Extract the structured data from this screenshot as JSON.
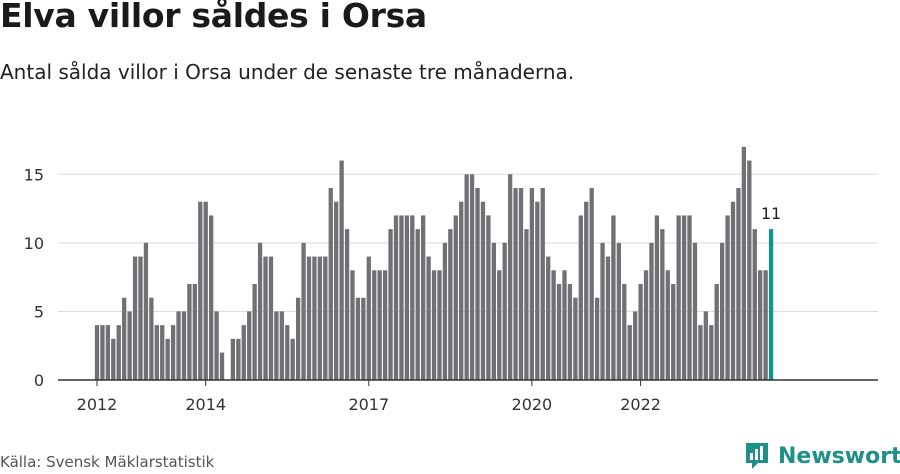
{
  "header": {
    "title": "Elva villor såldes i Orsa",
    "subtitle": "Antal sålda villor i Orsa under de senaste tre månaderna."
  },
  "footer": {
    "source": "Källa: Svensk Mäklarstatistik",
    "brand": "Newsworthy"
  },
  "colors": {
    "bar": "#707075",
    "highlight": "#12938b",
    "grid": "#d9d9d9",
    "axis": "#333333",
    "brand": "#1f8f8a"
  },
  "chart_data": {
    "type": "bar",
    "title": "Elva villor såldes i Orsa",
    "xlabel": "",
    "ylabel": "",
    "ylim": [
      0,
      17.5
    ],
    "yticks": [
      0,
      5,
      10,
      15
    ],
    "x_start": "2012-01",
    "xtick_labels": [
      "2012",
      "2014",
      "2017",
      "2020",
      "2022"
    ],
    "xtick_month_index": [
      0,
      20,
      50,
      80,
      100
    ],
    "values": [
      4,
      4,
      4,
      3,
      4,
      6,
      5,
      9,
      9,
      10,
      6,
      4,
      4,
      3,
      4,
      5,
      5,
      7,
      7,
      13,
      13,
      12,
      5,
      2,
      0,
      3,
      3,
      4,
      5,
      7,
      10,
      9,
      9,
      5,
      5,
      4,
      3,
      6,
      10,
      9,
      9,
      9,
      9,
      14,
      13,
      16,
      11,
      8,
      6,
      6,
      9,
      8,
      8,
      8,
      11,
      12,
      12,
      12,
      12,
      11,
      12,
      9,
      8,
      8,
      10,
      11,
      12,
      13,
      15,
      15,
      14,
      13,
      12,
      10,
      8,
      10,
      15,
      14,
      14,
      11,
      14,
      13,
      14,
      9,
      8,
      7,
      8,
      7,
      6,
      12,
      13,
      14,
      6,
      10,
      9,
      12,
      10,
      7,
      4,
      5,
      7,
      8,
      10,
      12,
      11,
      8,
      7,
      12,
      12,
      12,
      10,
      4,
      5,
      4,
      7,
      10,
      12,
      13,
      14,
      17,
      16,
      11,
      8,
      8,
      11
    ],
    "highlight_index": 124,
    "highlight_label": "11",
    "grid": true,
    "legend": "none"
  }
}
